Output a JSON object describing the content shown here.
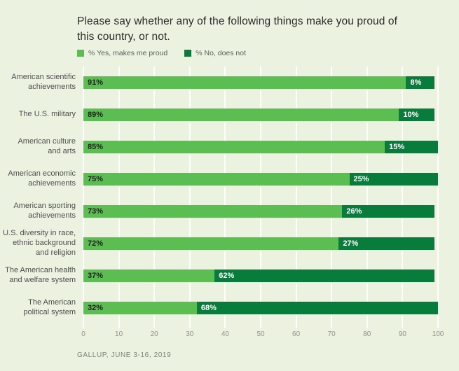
{
  "title": "Please say whether any of the following things make you proud of this country, or not.",
  "legend": [
    {
      "label": "% Yes, makes me proud",
      "color": "#5cbd52"
    },
    {
      "label": "% No, does not",
      "color": "#077c3b"
    }
  ],
  "footer": "GALLUP, JUNE 3-16, 2019",
  "colors": {
    "background": "#ecf2e0",
    "yes_bar": "#5cbd52",
    "no_bar": "#077c3b",
    "gridline": "#ffffff",
    "title_text": "#2b2b2b",
    "axis_text": "#8d9387"
  },
  "chart_data": {
    "type": "bar",
    "orientation": "horizontal",
    "stacked": true,
    "title": "Please say whether any of the following things make you proud of this country, or not.",
    "categories": [
      "American scientific\nachievements",
      "The U.S. military",
      "American culture\nand arts",
      "American economic\nachievements",
      "American sporting\nachievements",
      "U.S. diversity in race,\nethnic background\nand religion",
      "The American health\nand welfare system",
      "The American\npolitical system"
    ],
    "series": [
      {
        "name": "% Yes, makes me proud",
        "color": "#5cbd52",
        "values": [
          91,
          89,
          85,
          75,
          73,
          72,
          37,
          32
        ]
      },
      {
        "name": "% No, does not",
        "color": "#077c3b",
        "values": [
          8,
          10,
          15,
          25,
          26,
          27,
          62,
          68
        ]
      }
    ],
    "value_label_format": "{v}%",
    "value_labels": "inside-start",
    "x_ticks": [
      0,
      10,
      20,
      30,
      40,
      50,
      60,
      70,
      80,
      90,
      100
    ],
    "xlim": [
      0,
      100
    ],
    "grid": "vertical",
    "legend_position": "top-left",
    "source": "GALLUP, JUNE 3-16, 2019"
  }
}
